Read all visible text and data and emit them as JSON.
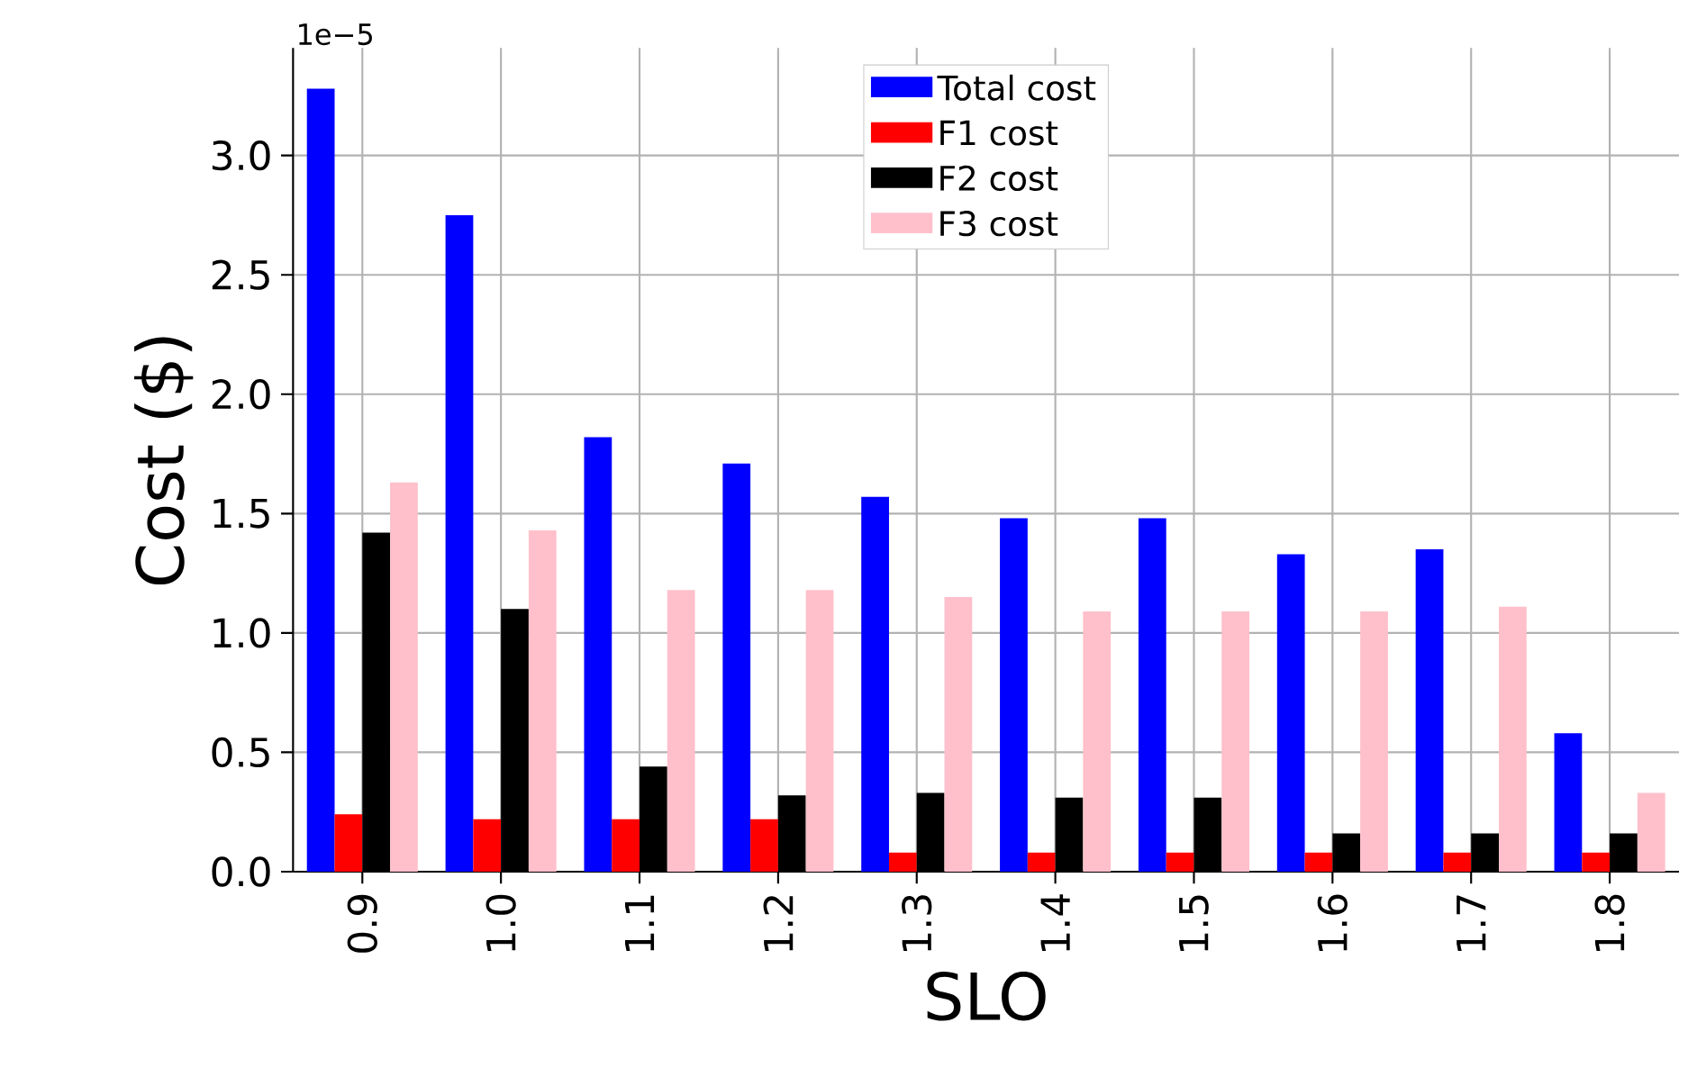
{
  "chart_data": {
    "type": "bar",
    "xlabel": "SLO",
    "ylabel": "Cost ($)",
    "categories": [
      "0.9",
      "1.0",
      "1.1",
      "1.2",
      "1.3",
      "1.4",
      "1.5",
      "1.6",
      "1.7",
      "1.8"
    ],
    "series": [
      {
        "name": "Total cost",
        "color": "#0000ff",
        "values": [
          3.28,
          2.75,
          1.82,
          1.71,
          1.57,
          1.48,
          1.48,
          1.33,
          1.35,
          0.58
        ]
      },
      {
        "name": "F1 cost",
        "color": "#ff0000",
        "values": [
          0.24,
          0.22,
          0.22,
          0.22,
          0.08,
          0.08,
          0.08,
          0.08,
          0.08,
          0.08
        ]
      },
      {
        "name": "F2 cost",
        "color": "#000000",
        "values": [
          1.42,
          1.1,
          0.44,
          0.32,
          0.33,
          0.31,
          0.31,
          0.16,
          0.16,
          0.16
        ]
      },
      {
        "name": "F3 cost",
        "color": "#ffc0cb",
        "values": [
          1.63,
          1.43,
          1.18,
          1.18,
          1.15,
          1.09,
          1.09,
          1.09,
          1.11,
          0.33
        ]
      }
    ],
    "ylim": [
      0,
      3.45
    ],
    "yticks": [
      {
        "value": 0,
        "label": "0.0"
      },
      {
        "value": 0.5,
        "label": "0.5"
      },
      {
        "value": 1.0,
        "label": "1.0"
      },
      {
        "value": 1.5,
        "label": "1.5"
      },
      {
        "value": 2.0,
        "label": "2.0"
      },
      {
        "value": 2.5,
        "label": "2.5"
      },
      {
        "value": 3.0,
        "label": "3.0"
      }
    ],
    "annotations": [
      "1e−5"
    ],
    "grid": true,
    "legend": "top"
  }
}
